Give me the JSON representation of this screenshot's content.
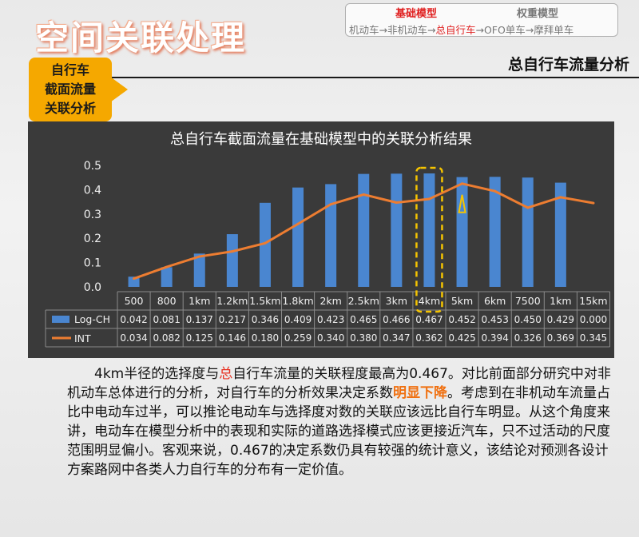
{
  "header": {
    "title": "空间关联处理",
    "nav_tab_base": "基础模型",
    "nav_tab_weight": "权重模型",
    "flow_1": "机动车→非机动车→",
    "flow_active": "总自行车",
    "flow_2": "→OFO单车→摩拜单车"
  },
  "section": {
    "title": "总自行车流量分析",
    "tag_line1": "自行车",
    "tag_line2": "截面流量",
    "tag_line3": "关联分析"
  },
  "colors": {
    "bar": "#4a86d0",
    "line": "#ed7d31",
    "highlight": "#f5c400",
    "accent": "#f5a800"
  },
  "chart_data": {
    "type": "bar",
    "title": "总自行车截面流量在基础模型中的关联分析结果",
    "ylim": [
      0,
      0.5
    ],
    "yticks": [
      "0.0",
      "0.1",
      "0.2",
      "0.3",
      "0.4",
      "0.5"
    ],
    "grid": false,
    "legend_placement": "table-left",
    "categories": [
      "500",
      "800",
      "1km",
      "1.2km",
      "1.5km",
      "1.8km",
      "2km",
      "2.5km",
      "3km",
      "4km",
      "5km",
      "6km",
      "7500",
      "1km",
      "15km"
    ],
    "series": [
      {
        "name": "Log-CH",
        "type": "bar",
        "values": [
          0.042,
          0.081,
          0.137,
          0.217,
          0.346,
          0.409,
          0.423,
          0.465,
          0.466,
          0.467,
          0.452,
          0.453,
          0.45,
          0.429,
          0.0
        ],
        "labels": [
          "0.042",
          "0.081",
          "0.137",
          "0.217",
          "0.346",
          "0.409",
          "0.423",
          "0.465",
          "0.466",
          "0.467",
          "0.452",
          "0.453",
          "0.450",
          "0.429",
          "0.000"
        ]
      },
      {
        "name": "INT",
        "type": "line",
        "values": [
          0.034,
          0.082,
          0.125,
          0.146,
          0.18,
          0.259,
          0.34,
          0.38,
          0.347,
          0.362,
          0.425,
          0.394,
          0.326,
          0.369,
          0.345
        ],
        "labels": [
          "0.034",
          "0.082",
          "0.125",
          "0.146",
          "0.180",
          "0.259",
          "0.340",
          "0.380",
          "0.347",
          "0.362",
          "0.425",
          "0.394",
          "0.326",
          "0.369",
          "0.345"
        ]
      }
    ],
    "highlight_index": 9,
    "annotation_peak_index": 10
  },
  "paragraph": {
    "p1": "4km半径的选择度与",
    "p1_hl": "总",
    "p2": "自行车流量的关联程度最高为0.467。对比前面部分研究中对非机动车总体进行的分析，对自行车的分析效果决定系数",
    "p2_hl": "明显下降",
    "p3": "。考虑到在非机动车流量占比中电动车过半，可以推论电动车与选择度对数的关联应该远比自行车明显。从这个角度来讲，电动车在模型分析中的表现和实际的道路选择模式应该更接近汽车，只不过活动的尺度范围明显偏小。客观来说，0.467的决定系数仍具有较强的统计意义，该结论对预测各设计方案路网中各类人力自行车的分布有一定价值。"
  }
}
